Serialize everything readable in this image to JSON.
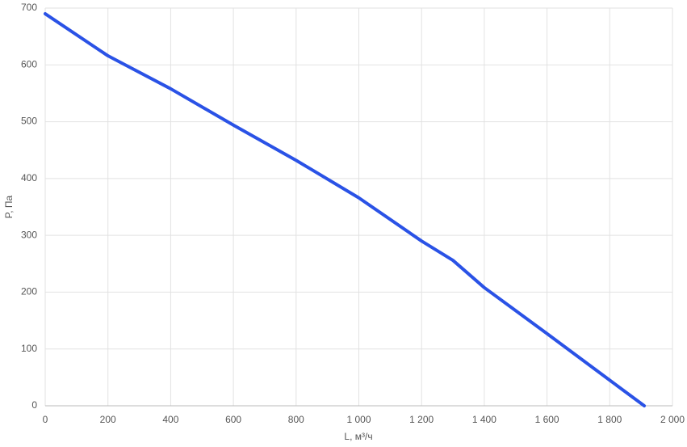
{
  "chart_data": {
    "type": "line",
    "x_label": "L, м³/ч",
    "y_label": "P, Па",
    "x": [
      0,
      200,
      255,
      400,
      600,
      800,
      1000,
      1200,
      1300,
      1400,
      1600,
      1800,
      1910
    ],
    "series": [
      {
        "color": "#2a52e6",
        "values": [
          690,
          616,
          600,
          558,
          494,
          432,
          366,
          290,
          256,
          208,
          127,
          45,
          0
        ]
      }
    ],
    "xlim": [
      0,
      2000
    ],
    "xticks": [
      0,
      200,
      400,
      600,
      800,
      {
        "value": 1000,
        "label": "1 000"
      },
      {
        "value": 1200,
        "label": "1 200"
      },
      {
        "value": 1400,
        "label": "1 400"
      },
      {
        "value": 1600,
        "label": "1 600"
      },
      {
        "value": 1800,
        "label": "1 800"
      },
      {
        "value": 2000,
        "label": "2 000"
      }
    ],
    "ylim": [
      0,
      700
    ],
    "yticks": [
      0,
      100,
      200,
      300,
      400,
      500,
      600,
      700
    ],
    "grid": true
  }
}
